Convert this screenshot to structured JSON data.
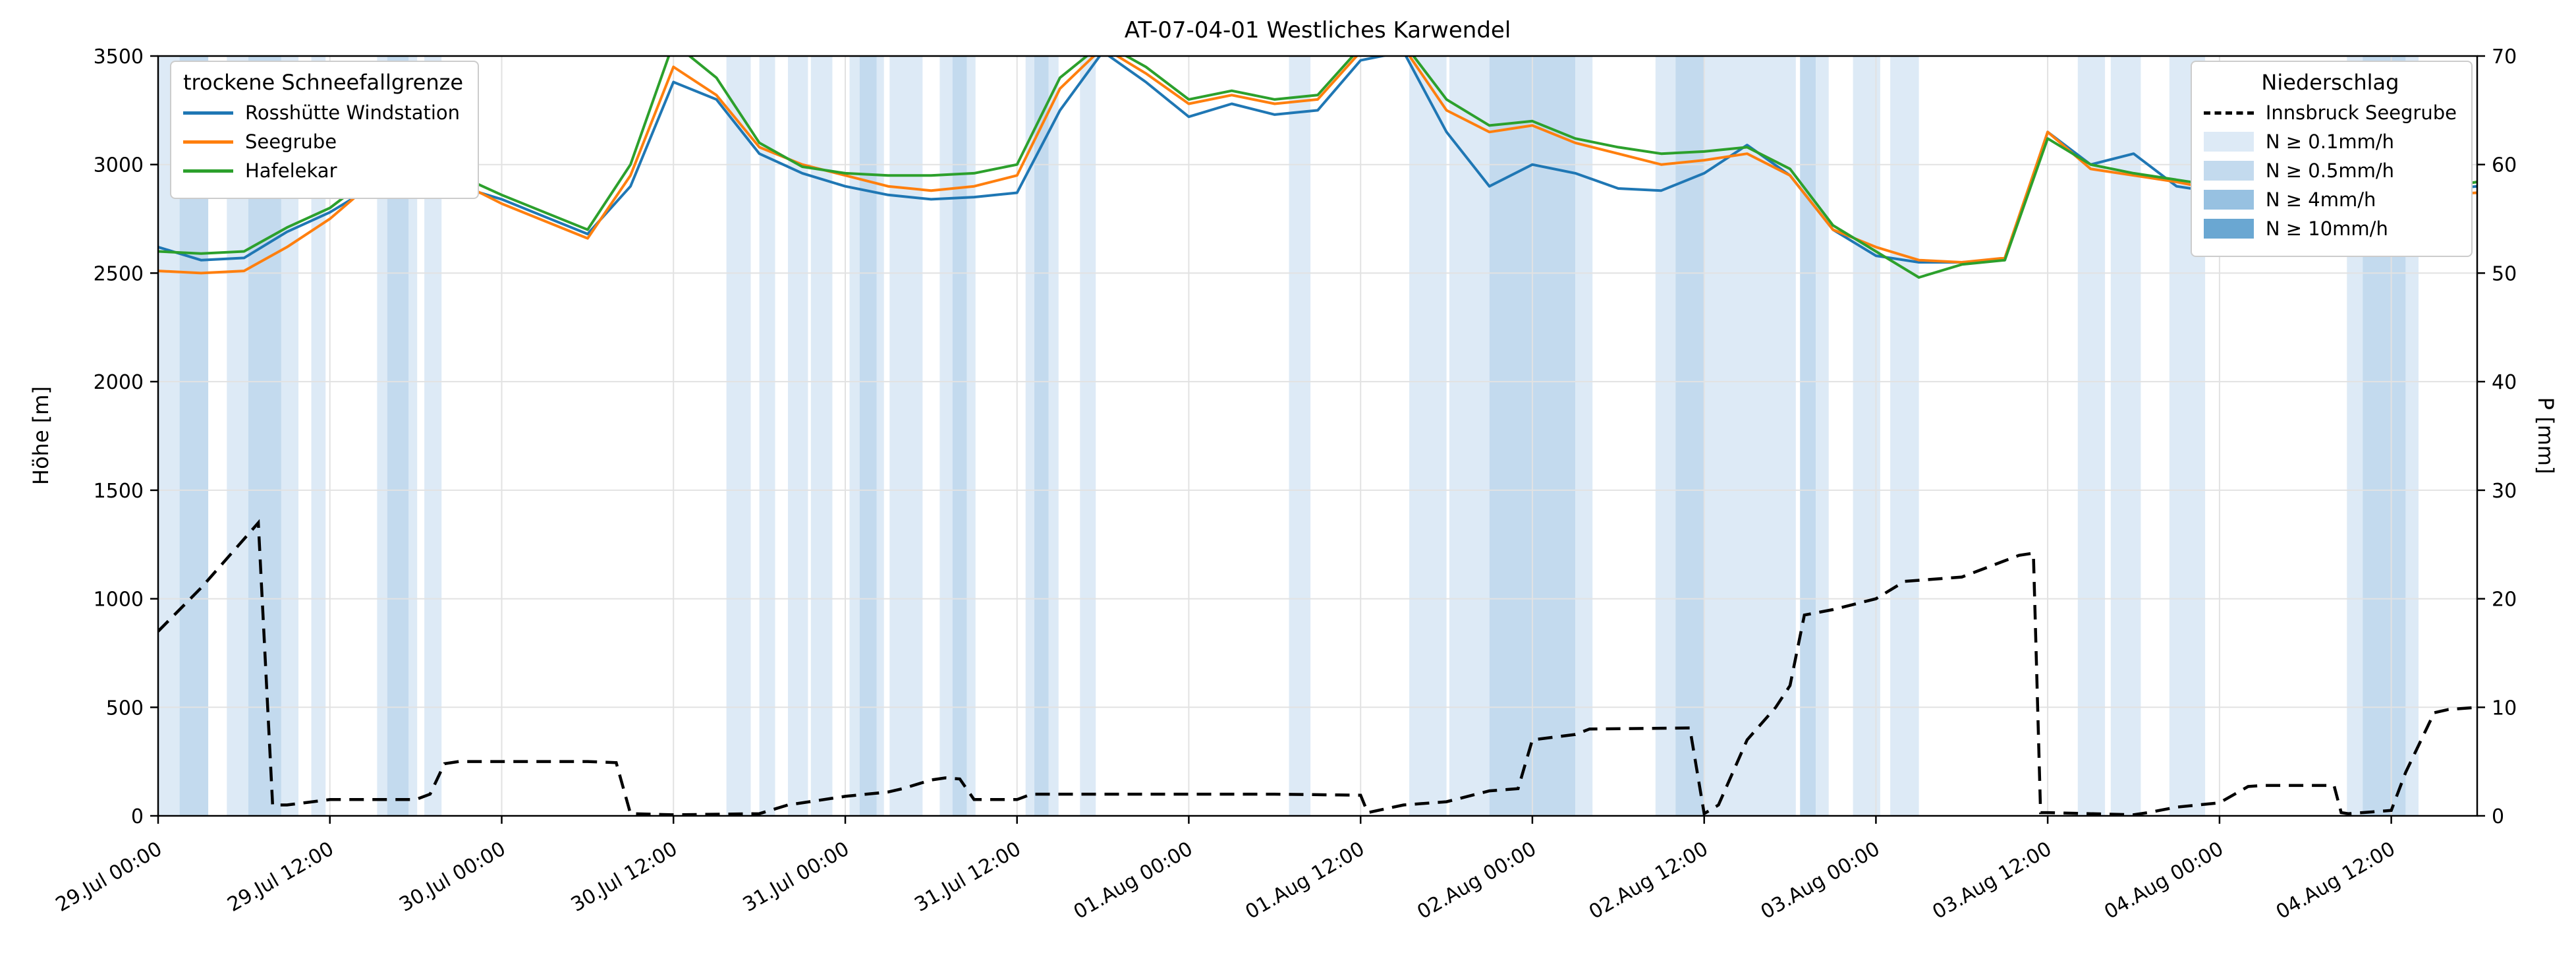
{
  "figure": {
    "title": "AT-07-04-01 Westliches Karwendel",
    "ylabel_left": "Höhe [m]",
    "ylabel_right": "P [mm]",
    "background": "#ffffff"
  },
  "legend_snowline": {
    "title": "trockene Schneefallgrenze",
    "entries": [
      {
        "label": "Rosshütte Windstation",
        "color": "#1f77b4",
        "style": "solid"
      },
      {
        "label": "Seegrube",
        "color": "#ff7f0e",
        "style": "solid"
      },
      {
        "label": "Hafelekar",
        "color": "#2ca02c",
        "style": "solid"
      }
    ]
  },
  "legend_precip": {
    "title": "Niederschlag",
    "entries": [
      {
        "label": "Innsbruck Seegrube",
        "color": "#000000",
        "style": "dashed"
      },
      {
        "label": "N ≥ 0.1mm/h",
        "color": "#ddeaf6",
        "style": "patch"
      },
      {
        "label": "N ≥ 0.5mm/h",
        "color": "#c3daee",
        "style": "patch"
      },
      {
        "label": "N ≥ 4mm/h",
        "color": "#97c1e1",
        "style": "patch"
      },
      {
        "label": "N ≥ 10mm/h",
        "color": "#6aa7d2",
        "style": "patch"
      }
    ]
  },
  "chart_data": {
    "type": "line",
    "title": "AT-07-04-01 Westliches Karwendel",
    "xlabel": "",
    "ylabel_left": "Höhe [m]",
    "ylabel_right": "P [mm]",
    "x_unit": "hours after 29.Jul 00:00",
    "xlim": [
      0,
      162
    ],
    "ylim_left": [
      0,
      3500
    ],
    "ylim_right": [
      0,
      70
    ],
    "grid": "light",
    "y_ticks_left": [
      0,
      500,
      1000,
      1500,
      2000,
      2500,
      3000,
      3500
    ],
    "y_ticks_right": [
      0,
      10,
      20,
      30,
      40,
      50,
      60,
      70
    ],
    "x_ticks": [
      {
        "t": 0,
        "label": "29.Jul 00:00"
      },
      {
        "t": 12,
        "label": "29.Jul 12:00"
      },
      {
        "t": 24,
        "label": "30.Jul 00:00"
      },
      {
        "t": 36,
        "label": "30.Jul 12:00"
      },
      {
        "t": 48,
        "label": "31.Jul 00:00"
      },
      {
        "t": 60,
        "label": "31.Jul 12:00"
      },
      {
        "t": 72,
        "label": "01.Aug 00:00"
      },
      {
        "t": 84,
        "label": "01.Aug 12:00"
      },
      {
        "t": 96,
        "label": "02.Aug 00:00"
      },
      {
        "t": 108,
        "label": "02.Aug 12:00"
      },
      {
        "t": 120,
        "label": "03.Aug 00:00"
      },
      {
        "t": 132,
        "label": "03.Aug 12:00"
      },
      {
        "t": 144,
        "label": "04.Aug 00:00"
      },
      {
        "t": 156,
        "label": "04.Aug 12:00"
      }
    ],
    "elevation_series": [
      {
        "name": "Rosshütte Windstation",
        "color": "#1f77b4",
        "x": [
          0,
          3,
          6,
          9,
          12,
          15,
          18,
          21,
          24,
          27,
          30,
          33,
          36,
          39,
          42,
          45,
          48,
          51,
          54,
          57,
          60,
          63,
          66,
          69,
          72,
          75,
          78,
          81,
          84,
          87,
          90,
          93,
          96,
          99,
          102,
          105,
          108,
          111,
          114,
          117,
          120,
          123,
          126,
          129,
          132,
          135,
          138,
          141,
          144,
          147,
          150,
          153,
          156,
          159,
          162
        ],
        "values": [
          2620,
          2560,
          2570,
          2690,
          2780,
          2900,
          2980,
          2900,
          2840,
          2760,
          2680,
          2900,
          3380,
          3300,
          3050,
          2960,
          2900,
          2860,
          2840,
          2850,
          2870,
          3250,
          3520,
          3380,
          3220,
          3280,
          3230,
          3250,
          3480,
          3520,
          3150,
          2900,
          3000,
          2960,
          2890,
          2880,
          2960,
          3090,
          2950,
          2700,
          2580,
          2550,
          2550,
          2560,
          3150,
          3000,
          3050,
          2900,
          2870,
          2820,
          2800,
          2830,
          2850,
          2880,
          2900
        ]
      },
      {
        "name": "Seegrube",
        "color": "#ff7f0e",
        "x": [
          0,
          3,
          6,
          9,
          12,
          15,
          18,
          21,
          24,
          27,
          30,
          33,
          36,
          39,
          42,
          45,
          48,
          51,
          54,
          57,
          60,
          63,
          66,
          69,
          72,
          75,
          78,
          81,
          84,
          87,
          90,
          93,
          96,
          99,
          102,
          105,
          108,
          111,
          114,
          117,
          120,
          123,
          126,
          129,
          132,
          135,
          138,
          141,
          144,
          147,
          150,
          153,
          156,
          159,
          162
        ],
        "values": [
          2510,
          2500,
          2510,
          2620,
          2750,
          2920,
          3010,
          2920,
          2820,
          2740,
          2660,
          2950,
          3450,
          3320,
          3080,
          3000,
          2950,
          2900,
          2880,
          2900,
          2950,
          3350,
          3540,
          3420,
          3280,
          3320,
          3280,
          3300,
          3520,
          3540,
          3250,
          3150,
          3180,
          3100,
          3050,
          3000,
          3020,
          3050,
          2950,
          2700,
          2620,
          2560,
          2550,
          2570,
          3150,
          2980,
          2950,
          2920,
          2880,
          2850,
          2820,
          2850,
          2870,
          2860,
          2870
        ]
      },
      {
        "name": "Hafelekar",
        "color": "#2ca02c",
        "x": [
          0,
          3,
          6,
          9,
          12,
          15,
          18,
          21,
          24,
          27,
          30,
          33,
          36,
          39,
          42,
          45,
          48,
          51,
          54,
          57,
          60,
          63,
          66,
          69,
          72,
          75,
          78,
          81,
          84,
          87,
          90,
          93,
          96,
          99,
          102,
          105,
          108,
          111,
          114,
          117,
          120,
          123,
          126,
          129,
          132,
          135,
          138,
          141,
          144,
          147,
          150,
          153,
          156,
          159,
          162
        ],
        "values": [
          2600,
          2590,
          2600,
          2710,
          2800,
          2950,
          3050,
          2950,
          2860,
          2780,
          2700,
          3000,
          3560,
          3400,
          3100,
          2990,
          2960,
          2950,
          2950,
          2960,
          3000,
          3400,
          3560,
          3450,
          3300,
          3340,
          3300,
          3320,
          3540,
          3560,
          3300,
          3180,
          3200,
          3120,
          3080,
          3050,
          3060,
          3080,
          2980,
          2720,
          2600,
          2480,
          2540,
          2560,
          3120,
          3000,
          2960,
          2930,
          2900,
          2860,
          2830,
          2860,
          2880,
          2890,
          2920
        ]
      }
    ],
    "precipitation_series": {
      "name": "Innsbruck Seegrube",
      "color": "#000000",
      "dashed": true,
      "x": [
        0,
        3,
        6,
        7,
        8,
        9,
        12,
        15,
        18,
        19,
        20,
        21,
        30,
        32,
        33,
        36,
        42,
        44,
        48,
        51,
        52,
        54,
        55,
        56,
        57,
        60,
        61,
        66,
        72,
        78,
        84,
        84.5,
        87,
        90,
        93,
        95,
        96,
        99,
        100,
        107,
        108,
        109,
        111,
        113,
        114,
        115,
        117,
        120,
        122,
        126,
        127,
        129,
        130,
        131,
        131.5,
        132,
        138,
        139,
        141,
        144,
        146,
        147,
        152,
        152.5,
        153,
        156,
        157,
        159,
        160,
        162
      ],
      "values": [
        17,
        21,
        25.5,
        27,
        1,
        1,
        1.5,
        1.5,
        1.5,
        2,
        4.8,
        5,
        5,
        4.9,
        0.2,
        0.1,
        0.2,
        1,
        1.8,
        2.2,
        2.5,
        3.3,
        3.5,
        3.4,
        1.5,
        1.5,
        2,
        2,
        2,
        2,
        1.9,
        0.3,
        1,
        1.3,
        2.3,
        2.5,
        7,
        7.5,
        8,
        8.1,
        0.2,
        1,
        7,
        10,
        12,
        18.5,
        19,
        20,
        21.6,
        22,
        22.5,
        23.5,
        24,
        24.2,
        0.3,
        0.3,
        0.1,
        0.3,
        0.8,
        1.2,
        2.7,
        2.8,
        2.8,
        0.3,
        0.2,
        0.5,
        4,
        9.5,
        9.8,
        10
      ]
    },
    "band_levels": {
      "0.1": "#ddeaf6",
      "0.5": "#c3daee",
      "4": "#97c1e1",
      "10": "#6aa7d2"
    },
    "precip_bands": [
      {
        "start": 0,
        "end": 1.5,
        "level": "0.1"
      },
      {
        "start": 1.5,
        "end": 3.5,
        "level": "0.5"
      },
      {
        "start": 4.8,
        "end": 6.3,
        "level": "0.1"
      },
      {
        "start": 6.3,
        "end": 8.6,
        "level": "0.5"
      },
      {
        "start": 8.6,
        "end": 9.8,
        "level": "0.1"
      },
      {
        "start": 10.7,
        "end": 11.7,
        "level": "0.1"
      },
      {
        "start": 15.3,
        "end": 16,
        "level": "0.1"
      },
      {
        "start": 16,
        "end": 17.5,
        "level": "0.5"
      },
      {
        "start": 17.5,
        "end": 18.1,
        "level": "0.1"
      },
      {
        "start": 18.6,
        "end": 19.8,
        "level": "0.1"
      },
      {
        "start": 39.7,
        "end": 41.4,
        "level": "0.1"
      },
      {
        "start": 42,
        "end": 43.1,
        "level": "0.1"
      },
      {
        "start": 44,
        "end": 45.4,
        "level": "0.1"
      },
      {
        "start": 45.6,
        "end": 47.1,
        "level": "0.1"
      },
      {
        "start": 48.3,
        "end": 49,
        "level": "0.1"
      },
      {
        "start": 49,
        "end": 50.2,
        "level": "0.5"
      },
      {
        "start": 50.2,
        "end": 50.7,
        "level": "0.1"
      },
      {
        "start": 51.1,
        "end": 53.4,
        "level": "0.1"
      },
      {
        "start": 54.6,
        "end": 55.5,
        "level": "0.1"
      },
      {
        "start": 55.5,
        "end": 56.5,
        "level": "0.5"
      },
      {
        "start": 56.5,
        "end": 57.1,
        "level": "0.1"
      },
      {
        "start": 60.6,
        "end": 61.2,
        "level": "0.1"
      },
      {
        "start": 61.2,
        "end": 62.2,
        "level": "0.5"
      },
      {
        "start": 62.2,
        "end": 62.9,
        "level": "0.1"
      },
      {
        "start": 64.4,
        "end": 65.5,
        "level": "0.1"
      },
      {
        "start": 79,
        "end": 80.5,
        "level": "0.1"
      },
      {
        "start": 87.4,
        "end": 90,
        "level": "0.1"
      },
      {
        "start": 90.2,
        "end": 93,
        "level": "0.1"
      },
      {
        "start": 93,
        "end": 96,
        "level": "0.5"
      },
      {
        "start": 96,
        "end": 99,
        "level": "0.5"
      },
      {
        "start": 99,
        "end": 100.2,
        "level": "0.1"
      },
      {
        "start": 104.6,
        "end": 106,
        "level": "0.1"
      },
      {
        "start": 106,
        "end": 108,
        "level": "0.5"
      },
      {
        "start": 108,
        "end": 114.4,
        "level": "0.1"
      },
      {
        "start": 114.7,
        "end": 115.8,
        "level": "0.5"
      },
      {
        "start": 115.8,
        "end": 116.7,
        "level": "0.1"
      },
      {
        "start": 118.4,
        "end": 120.3,
        "level": "0.1"
      },
      {
        "start": 121,
        "end": 123,
        "level": "0.1"
      },
      {
        "start": 134.1,
        "end": 136,
        "level": "0.1"
      },
      {
        "start": 136.4,
        "end": 138.5,
        "level": "0.1"
      },
      {
        "start": 140.5,
        "end": 143,
        "level": "0.1"
      },
      {
        "start": 152.9,
        "end": 154,
        "level": "0.1"
      },
      {
        "start": 154,
        "end": 157,
        "level": "0.5"
      },
      {
        "start": 157,
        "end": 157.9,
        "level": "0.1"
      }
    ],
    "legend_positions": {
      "snowline": "upper left",
      "precip": "upper right"
    }
  }
}
